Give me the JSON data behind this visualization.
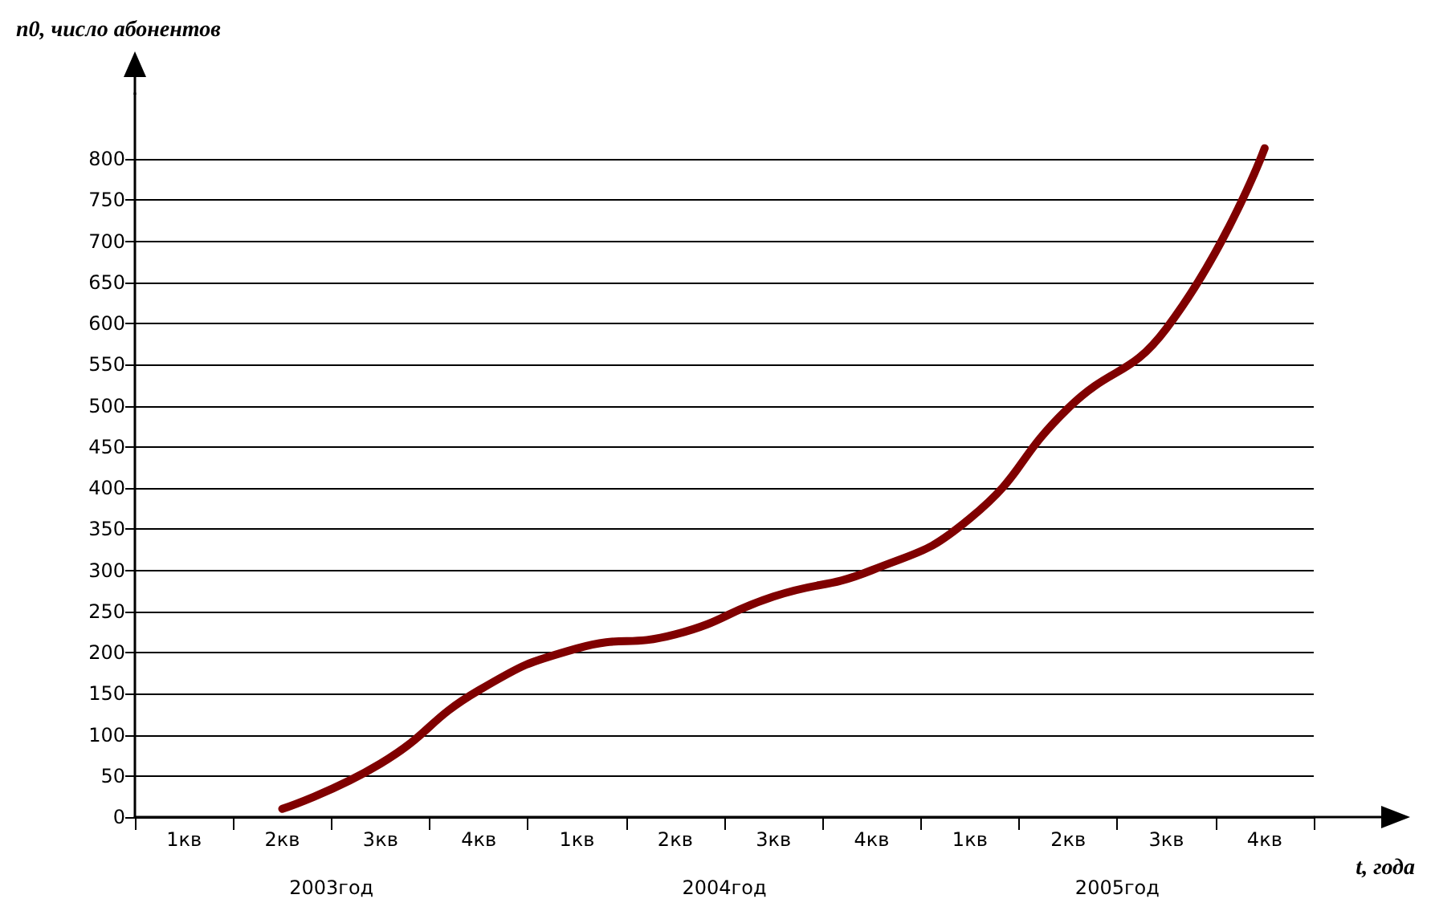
{
  "chart_data": {
    "type": "line",
    "ylabel": "n0, число абонентов",
    "xlabel": "t, года",
    "categories": [
      "1кв",
      "2кв",
      "3кв",
      "4кв",
      "1кв",
      "2кв",
      "3кв",
      "4кв",
      "1кв",
      "2кв",
      "3кв",
      "4кв"
    ],
    "series": [
      {
        "color": "#800000",
        "values": [
          null,
          10,
          65,
          154,
          205,
          222,
          268,
          300,
          363,
          497,
          594,
          813
        ]
      }
    ],
    "annotations": [
      "2003год",
      "2004год",
      "2005год"
    ],
    "ylim": [
      0,
      880
    ],
    "yticks": [
      0,
      50,
      100,
      150,
      200,
      250,
      300,
      350,
      400,
      450,
      500,
      550,
      600,
      650,
      700,
      750,
      800
    ],
    "grid": "y",
    "marker": "none",
    "line_style": "solid"
  }
}
